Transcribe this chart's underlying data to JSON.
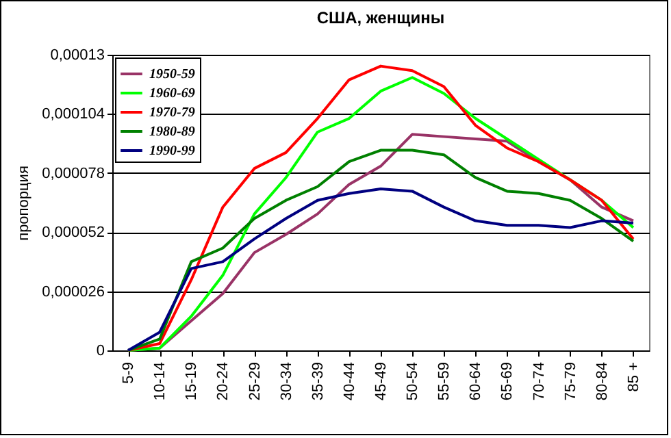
{
  "chart_data": {
    "type": "line",
    "title": "США, женщины",
    "ylabel": "пропорция",
    "categories": [
      "5-9",
      "10-14",
      "15-19",
      "20-24",
      "25-29",
      "30-34",
      "35-39",
      "40-44",
      "45-49",
      "50-54",
      "55-59",
      "60-64",
      "65-69",
      "70-74",
      "75-79",
      "80-84",
      "85 +"
    ],
    "series": [
      {
        "name": "1950-59",
        "color": "#993366",
        "values": [
          0,
          1e-06,
          1.3e-05,
          2.5e-05,
          4.3e-05,
          5.1e-05,
          6e-05,
          7.3e-05,
          8.1e-05,
          9.5e-05,
          9.4e-05,
          9.3e-05,
          9.2e-05,
          8.3e-05,
          7.5e-05,
          6.3e-05,
          5.7e-05
        ]
      },
      {
        "name": "1960-69",
        "color": "#00ff00",
        "values": [
          0,
          1e-06,
          1.5e-05,
          3.3e-05,
          6e-05,
          7.6e-05,
          9.6e-05,
          0.000102,
          0.000114,
          0.00012,
          0.000113,
          0.000102,
          9.3e-05,
          8.4e-05,
          7.5e-05,
          6.6e-05,
          5.4e-05
        ]
      },
      {
        "name": "1970-79",
        "color": "#ff0000",
        "values": [
          0,
          3e-06,
          3.1e-05,
          6.3e-05,
          8e-05,
          8.7e-05,
          0.000102,
          0.000119,
          0.000125,
          0.000123,
          0.000116,
          9.9e-05,
          8.9e-05,
          8.3e-05,
          7.5e-05,
          6.6e-05,
          4.9e-05
        ]
      },
      {
        "name": "1980-89",
        "color": "#008000",
        "values": [
          0,
          5e-06,
          3.9e-05,
          4.5e-05,
          5.8e-05,
          6.6e-05,
          7.2e-05,
          8.3e-05,
          8.8e-05,
          8.8e-05,
          8.6e-05,
          7.6e-05,
          7e-05,
          6.9e-05,
          6.6e-05,
          5.8e-05,
          4.8e-05
        ]
      },
      {
        "name": "1990-99",
        "color": "#000080",
        "values": [
          0,
          8e-06,
          3.6e-05,
          3.9e-05,
          4.9e-05,
          5.8e-05,
          6.6e-05,
          6.9e-05,
          7.1e-05,
          7e-05,
          6.3e-05,
          5.7e-05,
          5.5e-05,
          5.5e-05,
          5.4e-05,
          5.7e-05,
          5.6e-05
        ]
      }
    ],
    "ylim": [
      0,
      0.00013
    ],
    "yticks": [
      {
        "value": 0,
        "label": "0"
      },
      {
        "value": 2.6e-05,
        "label": "0,000026"
      },
      {
        "value": 5.2e-05,
        "label": "0,000052"
      },
      {
        "value": 7.8e-05,
        "label": "0,000078"
      },
      {
        "value": 0.000104,
        "label": "0,000104"
      },
      {
        "value": 0.00013,
        "label": "0,00013"
      }
    ],
    "grid": "y",
    "legend": "top left",
    "marker": "none",
    "line_style": "solid"
  }
}
